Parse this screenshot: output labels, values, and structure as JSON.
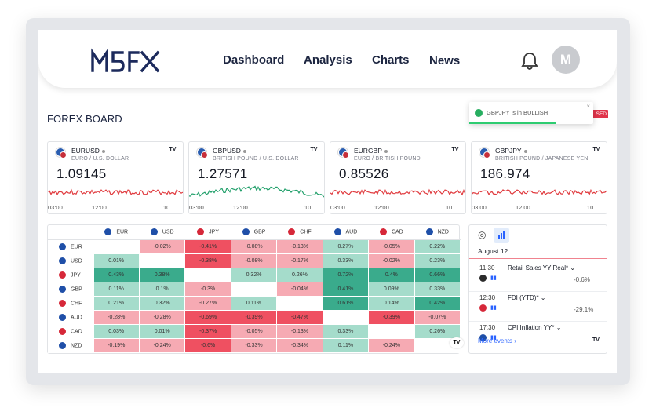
{
  "app": {
    "logo_text": "M5FX"
  },
  "nav": {
    "items": [
      "Dashboard",
      "Analysis",
      "Charts",
      "News"
    ]
  },
  "user": {
    "avatar_initial": "M"
  },
  "board": {
    "title": "FOREX BOARD"
  },
  "toast": {
    "message": "GBPJPY is in BULLISH",
    "close": "×",
    "progress": 0.7
  },
  "badge": {
    "text": "SED"
  },
  "cards": [
    {
      "symbol": "EURUSD",
      "description": "EURO / U.S. DOLLAR",
      "price": "1.09145",
      "ticks": [
        "03:00",
        "12:00",
        "10"
      ],
      "color": "#e03a3e",
      "tv": "TV"
    },
    {
      "symbol": "GBPUSD",
      "description": "BRITISH POUND / U.S. DOLLAR",
      "price": "1.27571",
      "ticks": [
        "03:00",
        "12:00",
        "10"
      ],
      "color": "#22a06b",
      "tv": "TV"
    },
    {
      "symbol": "EURGBP",
      "description": "EURO / BRITISH POUND",
      "price": "0.85526",
      "ticks": [
        "03:00",
        "12:00",
        "10"
      ],
      "color": "#e03a3e",
      "tv": "TV"
    },
    {
      "symbol": "GBPJPY",
      "description": "BRITISH POUND / JAPANESE YEN",
      "price": "186.974",
      "ticks": [
        "03:00",
        "12:00",
        "10"
      ],
      "color": "#e03a3e",
      "tv": "TV"
    }
  ],
  "matrix": {
    "currencies": [
      "EUR",
      "USD",
      "JPY",
      "GBP",
      "CHF",
      "AUD",
      "CAD",
      "NZD"
    ],
    "flag_colors": [
      "#1f4fa8",
      "#1f4fa8",
      "#d62839",
      "#1f4fa8",
      "#d62839",
      "#1f4fa8",
      "#d62839",
      "#1f4fa8"
    ],
    "rows": [
      [
        "",
        "-0.02%",
        "-0.41%",
        "-0.08%",
        "-0.13%",
        "0.27%",
        "-0.05%",
        "0.22%"
      ],
      [
        "0.01%",
        "",
        "-0.38%",
        "-0.08%",
        "-0.17%",
        "0.33%",
        "-0.02%",
        "0.23%"
      ],
      [
        "0.43%",
        "0.38%",
        "",
        "0.32%",
        "0.26%",
        "0.72%",
        "0.4%",
        "0.66%"
      ],
      [
        "0.11%",
        "0.1%",
        "-0.3%",
        "",
        "-0.04%",
        "0.41%",
        "0.09%",
        "0.33%"
      ],
      [
        "0.21%",
        "0.32%",
        "-0.27%",
        "0.11%",
        "",
        "0.61%",
        "0.14%",
        "0.42%"
      ],
      [
        "-0.28%",
        "-0.28%",
        "-0.69%",
        "-0.39%",
        "-0.47%",
        "",
        "-0.39%",
        "-0.07%"
      ],
      [
        "0.03%",
        "0.01%",
        "-0.37%",
        "-0.05%",
        "-0.13%",
        "0.33%",
        "",
        "0.26%"
      ],
      [
        "-0.19%",
        "-0.24%",
        "-0.6%",
        "-0.33%",
        "-0.34%",
        "0.11%",
        "-0.24%",
        ""
      ]
    ],
    "tv": "TV"
  },
  "calendar": {
    "date": "August 12",
    "events": [
      {
        "time": "11:30",
        "title": "Retail Sales YY Real*",
        "value": "-0.6%",
        "flag_color": "#2b2b2b"
      },
      {
        "time": "12:30",
        "title": "FDI (YTD)*",
        "value": "-29.1%",
        "flag_color": "#d62839"
      },
      {
        "time": "17:30",
        "title": "CPI Inflation YY*",
        "value": "",
        "flag_color": "#1f4fa8"
      }
    ],
    "more_label": "More events",
    "tv": "TV"
  }
}
